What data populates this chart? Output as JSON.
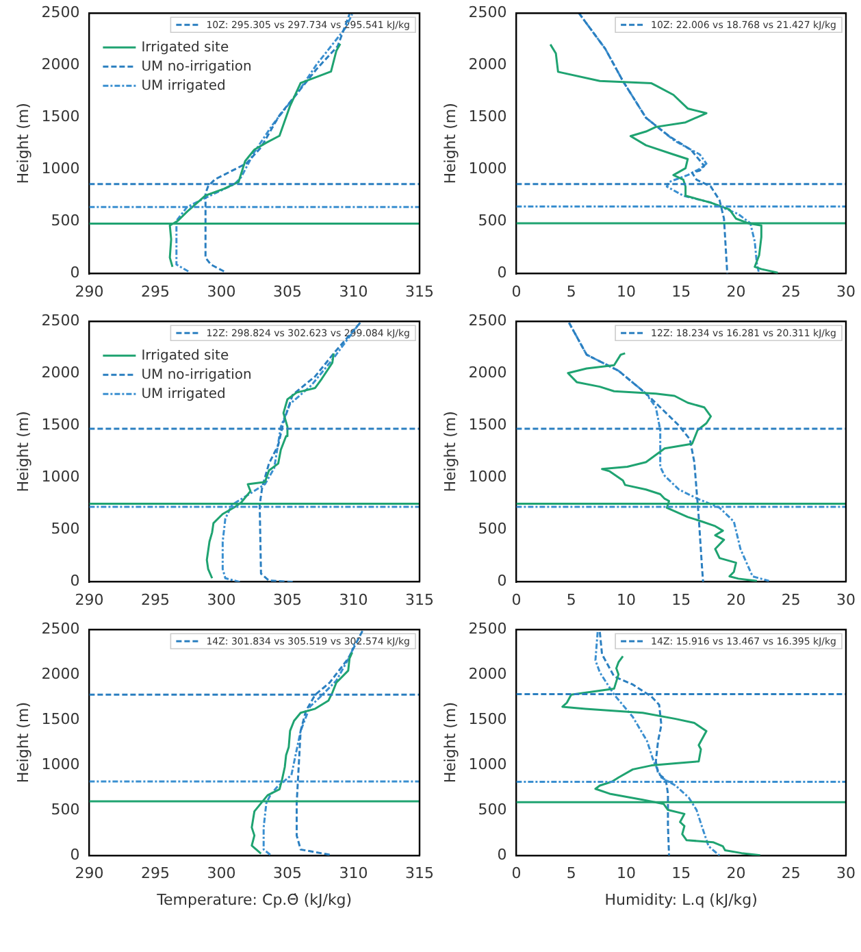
{
  "chart_data": [
    {
      "type": "line",
      "ylabel": "Height (m)",
      "xlim": [
        290,
        315
      ],
      "xticks": [
        290,
        295,
        300,
        305,
        310,
        315
      ],
      "ylim": [
        0,
        2500
      ],
      "yticks": [
        0,
        500,
        1000,
        1500,
        2000,
        2500
      ],
      "grid": false,
      "marker": "none",
      "legend": "top left",
      "annotations": [
        "10Z: 295.305 vs 297.734 vs 295.541 kJ/kg"
      ],
      "series": [
        {
          "name": "Irrigated site",
          "color": "#1fa371",
          "line_style": "solid",
          "x": [
            296.3,
            296.1,
            296.2,
            296.1,
            296.7,
            297.4,
            298.8,
            300.2,
            301.3,
            301.8,
            302.5,
            303.4,
            304.4,
            305.2,
            306.0,
            306.9,
            308.3,
            308.7,
            309.0
          ],
          "values": [
            66,
            154,
            330,
            463,
            507,
            595,
            750,
            815,
            880,
            1080,
            1190,
            1257,
            1323,
            1610,
            1830,
            1873,
            1940,
            2138,
            2205
          ]
        },
        {
          "name": "UM no-irrigation",
          "color": "#2b7fc0",
          "line_style": "dashed",
          "x": [
            300.2,
            299.2,
            298.8,
            298.8,
            298.8,
            299.0,
            299.5,
            301.9,
            303.0,
            304.4,
            305.8,
            307.2,
            308.8,
            309.7
          ],
          "values": [
            22,
            88,
            154,
            507,
            771,
            838,
            904,
            1058,
            1212,
            1521,
            1741,
            1962,
            2183,
            2491
          ]
        },
        {
          "name": "UM irrigated",
          "color": "#3a8fd0",
          "line_style": "dashdot",
          "x": [
            297.5,
            296.6,
            296.6,
            296.6,
            297.4,
            298.8,
            301.0,
            301.5,
            302.5,
            303.9,
            305.8,
            307.2,
            309.4,
            309.9
          ],
          "values": [
            22,
            88,
            419,
            507,
            639,
            728,
            860,
            926,
            1168,
            1433,
            1741,
            2006,
            2359,
            2491
          ]
        }
      ],
      "ref_lines": [
        {
          "axis": "y",
          "value": 860,
          "color": "#2b7fc0",
          "line_style": "dashed"
        },
        {
          "axis": "y",
          "value": 640,
          "color": "#3a8fd0",
          "line_style": "dashdot"
        },
        {
          "axis": "y",
          "value": 480,
          "color": "#1fa371",
          "line_style": "solid"
        }
      ]
    },
    {
      "type": "line",
      "ylabel": "Height (m)",
      "xlim": [
        0,
        30
      ],
      "xticks": [
        0,
        5,
        10,
        15,
        20,
        25,
        30
      ],
      "ylim": [
        0,
        2500
      ],
      "yticks": [
        0,
        500,
        1000,
        1500,
        2000,
        2500
      ],
      "grid": false,
      "marker": "none",
      "annotations": [
        "10Z: 22.006 vs 18.768 vs 21.427 kJ/kg"
      ],
      "series": [
        {
          "color": "#1fa371",
          "line_style": "solid",
          "x": [
            3.1,
            3.6,
            3.8,
            7.6,
            12.3,
            12.7,
            14.3,
            15.6,
            17.3,
            15.4,
            12.7,
            11.8,
            10.4,
            11.8,
            14.3,
            15.6,
            15.4,
            14.3,
            15.2,
            15.4,
            15.4,
            17.7,
            19.4,
            20.0,
            21.1,
            22.3,
            22.3,
            22.1,
            21.7,
            22.3,
            23.8
          ],
          "values": [
            2200,
            2113,
            1937,
            1849,
            1827,
            1805,
            1716,
            1585,
            1540,
            1452,
            1408,
            1364,
            1320,
            1232,
            1144,
            1100,
            1012,
            946,
            902,
            836,
            748,
            682,
            616,
            528,
            484,
            462,
            352,
            176,
            66,
            44,
            9
          ]
        },
        {
          "color": "#2b7fc0",
          "line_style": "dashed",
          "x": [
            5.7,
            8.1,
            9.7,
            11.8,
            13.9,
            15.9,
            17.1,
            16.7,
            16.0,
            16.4,
            17.7,
            18.5,
            18.9,
            19.1,
            19.2
          ],
          "values": [
            2500,
            2157,
            1849,
            1496,
            1320,
            1188,
            1034,
            990,
            968,
            902,
            836,
            704,
            528,
            176,
            0
          ]
        },
        {
          "color": "#3a8fd0",
          "line_style": "dashdot",
          "x": [
            5.7,
            8.1,
            9.7,
            11.8,
            14.4,
            16.7,
            17.3,
            16.8,
            15.6,
            13.9,
            13.7,
            15.2,
            17.7,
            20.2,
            21.3,
            21.7,
            21.9,
            22.1
          ],
          "values": [
            2500,
            2157,
            1849,
            1496,
            1276,
            1144,
            1056,
            1012,
            946,
            880,
            836,
            748,
            682,
            572,
            484,
            308,
            88,
            0
          ]
        }
      ],
      "ref_lines": [
        {
          "axis": "y",
          "value": 860,
          "color": "#2b7fc0",
          "line_style": "dashed"
        },
        {
          "axis": "y",
          "value": 645,
          "color": "#3a8fd0",
          "line_style": "dashdot"
        },
        {
          "axis": "y",
          "value": 484,
          "color": "#1fa371",
          "line_style": "solid"
        }
      ]
    },
    {
      "type": "line",
      "ylabel": "Height (m)",
      "xlim": [
        290,
        315
      ],
      "xticks": [
        290,
        295,
        300,
        305,
        310,
        315
      ],
      "ylim": [
        0,
        2500
      ],
      "yticks": [
        0,
        500,
        1000,
        1500,
        2000,
        2500
      ],
      "grid": false,
      "marker": "none",
      "legend": "top left",
      "annotations": [
        "12Z: 298.824 vs 302.623 vs 299.084 kJ/kg"
      ],
      "series": [
        {
          "name": "Irrigated site",
          "color": "#1fa371",
          "line_style": "solid",
          "x": [
            299.3,
            299.0,
            298.9,
            299.1,
            299.3,
            299.4,
            300.1,
            301.0,
            301.5,
            302.2,
            302.0,
            303.3,
            303.6,
            304.3,
            304.5,
            304.9,
            305.0,
            304.7,
            305.0,
            305.7,
            307.1,
            307.6,
            308.4,
            308.5
          ],
          "values": [
            35,
            123,
            211,
            387,
            475,
            563,
            651,
            717,
            761,
            871,
            937,
            959,
            1069,
            1135,
            1267,
            1399,
            1488,
            1620,
            1752,
            1817,
            1861,
            1949,
            2103,
            2192
          ]
        },
        {
          "name": "UM no-irrigation",
          "color": "#2b7fc0",
          "line_style": "dashed",
          "x": [
            305.4,
            303.6,
            303.0,
            302.9,
            303.1,
            303.6,
            304.3,
            304.7,
            305.4,
            307.1,
            308.5,
            310.6
          ],
          "values": [
            0,
            13,
            79,
            739,
            915,
            1135,
            1311,
            1532,
            1796,
            1972,
            2192,
            2500
          ]
        },
        {
          "name": "UM irrigated",
          "color": "#3a8fd0",
          "line_style": "dashdot",
          "x": [
            301.4,
            300.3,
            300.1,
            300.1,
            300.3,
            300.8,
            302.2,
            303.3,
            304.0,
            304.5,
            305.2,
            306.8,
            308.5,
            310.3
          ],
          "values": [
            0,
            35,
            123,
            387,
            607,
            739,
            849,
            937,
            1092,
            1488,
            1708,
            1884,
            2148,
            2456
          ]
        }
      ],
      "ref_lines": [
        {
          "axis": "y",
          "value": 1470,
          "color": "#2b7fc0",
          "line_style": "dashed"
        },
        {
          "axis": "y",
          "value": 750,
          "color": "#1fa371",
          "line_style": "solid"
        },
        {
          "axis": "y",
          "value": 720,
          "color": "#3a8fd0",
          "line_style": "dashdot"
        }
      ]
    },
    {
      "type": "line",
      "ylabel": "Height (m)",
      "xlim": [
        0,
        30
      ],
      "xticks": [
        0,
        5,
        10,
        15,
        20,
        25,
        30
      ],
      "ylim": [
        0,
        2500
      ],
      "yticks": [
        0,
        500,
        1000,
        1500,
        2000,
        2500
      ],
      "grid": false,
      "marker": "none",
      "annotations": [
        "12Z: 18.234 vs 16.281 vs 20.311 kJ/kg"
      ],
      "series": [
        {
          "color": "#1fa371",
          "line_style": "solid",
          "x": [
            9.9,
            9.5,
            8.9,
            6.4,
            4.7,
            5.5,
            7.6,
            8.9,
            12.7,
            14.4,
            15.6,
            17.1,
            17.7,
            17.3,
            16.5,
            16.0,
            13.5,
            11.8,
            10.1,
            7.8,
            8.5,
            9.7,
            9.9,
            11.8,
            13.1,
            13.5,
            13.9,
            13.7,
            15.6,
            16.9,
            18.1,
            18.8,
            18.1,
            18.9,
            18.1,
            18.5,
            20.0,
            19.8,
            19.4,
            20.2,
            21.9
          ],
          "values": [
            2193,
            2180,
            2079,
            2048,
            2004,
            1917,
            1873,
            1829,
            1807,
            1785,
            1719,
            1675,
            1588,
            1522,
            1456,
            1325,
            1281,
            1149,
            1105,
            1083,
            1061,
            974,
            930,
            886,
            842,
            798,
            776,
            711,
            623,
            579,
            535,
            491,
            447,
            404,
            316,
            228,
            184,
            96,
            53,
            31,
            9
          ]
        },
        {
          "color": "#2b7fc0",
          "line_style": "dashed",
          "x": [
            4.8,
            6.4,
            9.3,
            11.8,
            13.1,
            14.8,
            15.8,
            16.2,
            16.4,
            16.6,
            16.9,
            17.0
          ],
          "values": [
            2487,
            2180,
            2026,
            1807,
            1675,
            1500,
            1368,
            1149,
            886,
            623,
            140,
            0
          ]
        },
        {
          "color": "#3a8fd0",
          "line_style": "dashdot",
          "x": [
            4.8,
            6.4,
            9.3,
            11.8,
            12.7,
            13.1,
            13.1,
            13.5,
            14.8,
            16.5,
            18.5,
            19.8,
            20.4,
            21.5,
            23.0
          ],
          "values": [
            2487,
            2180,
            2026,
            1807,
            1675,
            1456,
            1105,
            1018,
            886,
            798,
            711,
            579,
            316,
            53,
            9
          ]
        }
      ],
      "ref_lines": [
        {
          "axis": "y",
          "value": 1470,
          "color": "#2b7fc0",
          "line_style": "dashed"
        },
        {
          "axis": "y",
          "value": 750,
          "color": "#1fa371",
          "line_style": "solid"
        },
        {
          "axis": "y",
          "value": 720,
          "color": "#3a8fd0",
          "line_style": "dashdot"
        }
      ]
    },
    {
      "type": "line",
      "xlabel": "Temperature: Cp.Θ̇ (kJ/kg)",
      "ylabel": "Height (m)",
      "xlim": [
        290,
        315
      ],
      "xticks": [
        290,
        295,
        300,
        305,
        310,
        315
      ],
      "ylim": [
        0,
        2500
      ],
      "yticks": [
        0,
        500,
        1000,
        1500,
        2000,
        2500
      ],
      "grid": false,
      "marker": "none",
      "annotations": [
        "14Z: 301.834 vs 305.519 vs 302.574 kJ/kg"
      ],
      "series": [
        {
          "color": "#1fa371",
          "line_style": "solid",
          "x": [
            303.0,
            302.3,
            302.5,
            302.3,
            302.5,
            303.0,
            303.5,
            304.4,
            304.6,
            304.8,
            304.9,
            305.1,
            305.2,
            305.5,
            306.0,
            307.1,
            308.1,
            308.4,
            308.7,
            309.6,
            309.7,
            309.9
          ],
          "values": [
            22,
            111,
            222,
            311,
            489,
            578,
            667,
            734,
            845,
            979,
            1112,
            1201,
            1379,
            1490,
            1579,
            1624,
            1713,
            1802,
            1913,
            2046,
            2180,
            2246
          ]
        },
        {
          "color": "#2b7fc0",
          "line_style": "dashed",
          "x": [
            308.2,
            306.0,
            305.7,
            305.7,
            305.8,
            306.0,
            306.4,
            307.1,
            308.2,
            309.6,
            310.7
          ],
          "values": [
            9,
            67,
            222,
            578,
            845,
            1379,
            1601,
            1779,
            1913,
            2180,
            2491
          ]
        },
        {
          "color": "#3a8fd0",
          "line_style": "dashdot",
          "x": [
            303.7,
            303.2,
            303.2,
            303.4,
            303.7,
            304.2,
            305.3,
            306.0,
            306.7,
            307.5,
            308.7,
            309.8,
            310.1
          ],
          "values": [
            9,
            67,
            311,
            578,
            667,
            756,
            890,
            1379,
            1646,
            1757,
            1935,
            2224,
            2358
          ]
        }
      ],
      "ref_lines": [
        {
          "axis": "y",
          "value": 1780,
          "color": "#2b7fc0",
          "line_style": "dashed"
        },
        {
          "axis": "y",
          "value": 820,
          "color": "#3a8fd0",
          "line_style": "dashdot"
        },
        {
          "axis": "y",
          "value": 600,
          "color": "#1fa371",
          "line_style": "solid"
        }
      ]
    },
    {
      "type": "line",
      "xlabel": "Humidity: L.q (kJ/kg)",
      "ylabel": "Height (m)",
      "xlim": [
        0,
        30
      ],
      "xticks": [
        0,
        5,
        10,
        15,
        20,
        25,
        30
      ],
      "ylim": [
        0,
        2500
      ],
      "yticks": [
        0,
        500,
        1000,
        1500,
        2000,
        2500
      ],
      "grid": false,
      "marker": "none",
      "annotations": [
        "14Z: 15.916 vs 13.467 vs 16.395 kJ/kg"
      ],
      "series": [
        {
          "color": "#1fa371",
          "line_style": "solid",
          "x": [
            9.7,
            9.3,
            9.1,
            9.3,
            8.9,
            5.0,
            4.6,
            4.2,
            6.3,
            11.5,
            14.5,
            16.2,
            17.3,
            16.6,
            16.8,
            16.6,
            14.5,
            12.3,
            10.6,
            9.3,
            8.7,
            7.6,
            7.2,
            8.5,
            11.5,
            13.4,
            13.8,
            15.3,
            14.9,
            15.3,
            15.1,
            15.5,
            17.9,
            18.8,
            19.0,
            20.5,
            22.2
          ],
          "values": [
            2205,
            2138,
            2071,
            2004,
            1847,
            1780,
            1691,
            1646,
            1623,
            1579,
            1512,
            1467,
            1377,
            1221,
            1176,
            1042,
            1020,
            997,
            953,
            863,
            818,
            774,
            738,
            684,
            617,
            572,
            505,
            461,
            371,
            326,
            237,
            170,
            148,
            103,
            58,
            27,
            4
          ]
        },
        {
          "color": "#2b7fc0",
          "line_style": "dashed",
          "x": [
            7.6,
            7.8,
            8.9,
            10.6,
            12.3,
            13.0,
            13.2,
            12.9,
            12.7,
            12.9,
            13.6,
            13.8,
            13.8,
            13.9
          ],
          "values": [
            2473,
            2227,
            1981,
            1892,
            1758,
            1668,
            1445,
            1266,
            1042,
            908,
            841,
            684,
            326,
            0
          ]
        },
        {
          "color": "#3a8fd0",
          "line_style": "dashdot",
          "x": [
            7.4,
            7.2,
            7.6,
            8.9,
            10.6,
            11.9,
            12.5,
            13.2,
            14.5,
            15.7,
            16.4,
            17.0,
            17.5,
            18.5
          ],
          "values": [
            2473,
            2160,
            2026,
            1780,
            1534,
            1266,
            1042,
            863,
            774,
            640,
            505,
            282,
            103,
            0
          ]
        }
      ],
      "ref_lines": [
        {
          "axis": "y",
          "value": 1785,
          "color": "#2b7fc0",
          "line_style": "dashed"
        },
        {
          "axis": "y",
          "value": 815,
          "color": "#3a8fd0",
          "line_style": "dashdot"
        },
        {
          "axis": "y",
          "value": 590,
          "color": "#1fa371",
          "line_style": "solid"
        }
      ]
    }
  ]
}
